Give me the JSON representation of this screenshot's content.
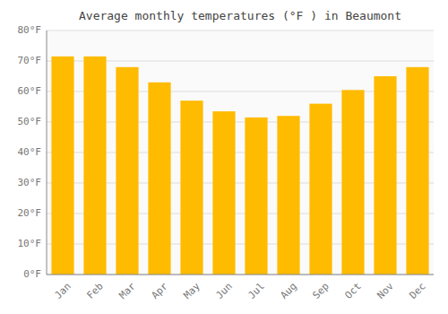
{
  "chart_data": {
    "type": "bar",
    "title": "Average monthly temperatures (°F ) in Beaumont",
    "categories": [
      "Jan",
      "Feb",
      "Mar",
      "Apr",
      "May",
      "Jun",
      "Jul",
      "Aug",
      "Sep",
      "Oct",
      "Nov",
      "Dec"
    ],
    "values": [
      71.5,
      71.5,
      68.0,
      63.0,
      57.0,
      53.5,
      51.5,
      52.0,
      56.0,
      60.5,
      65.0,
      68.0
    ],
    "color": "#FFBB00",
    "ylim": [
      0,
      80
    ],
    "yticks": [
      {
        "value": 0,
        "label": "0°F"
      },
      {
        "value": 10,
        "label": "10°F"
      },
      {
        "value": 20,
        "label": "20°F"
      },
      {
        "value": 30,
        "label": "30°F"
      },
      {
        "value": 40,
        "label": "40°F"
      },
      {
        "value": 50,
        "label": "50°F"
      },
      {
        "value": 60,
        "label": "60°F"
      },
      {
        "value": 70,
        "label": "70°F"
      },
      {
        "value": 80,
        "label": "80°F"
      }
    ],
    "grid": true
  }
}
